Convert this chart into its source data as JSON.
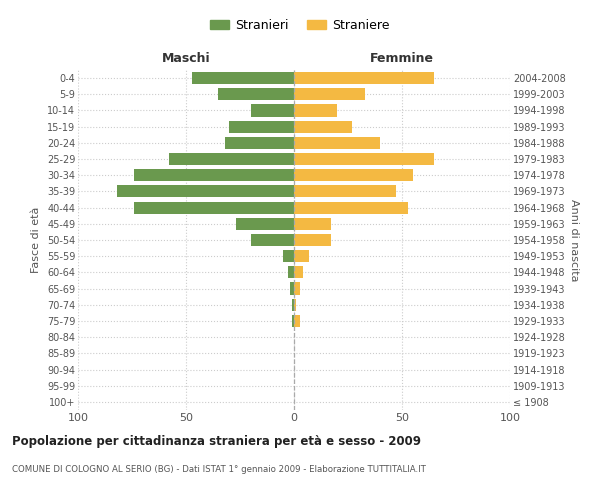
{
  "age_groups": [
    "100+",
    "95-99",
    "90-94",
    "85-89",
    "80-84",
    "75-79",
    "70-74",
    "65-69",
    "60-64",
    "55-59",
    "50-54",
    "45-49",
    "40-44",
    "35-39",
    "30-34",
    "25-29",
    "20-24",
    "15-19",
    "10-14",
    "5-9",
    "0-4"
  ],
  "birth_years": [
    "≤ 1908",
    "1909-1913",
    "1914-1918",
    "1919-1923",
    "1924-1928",
    "1929-1933",
    "1934-1938",
    "1939-1943",
    "1944-1948",
    "1949-1953",
    "1954-1958",
    "1959-1963",
    "1964-1968",
    "1969-1973",
    "1974-1978",
    "1979-1983",
    "1984-1988",
    "1989-1993",
    "1994-1998",
    "1999-2003",
    "2004-2008"
  ],
  "maschi": [
    0,
    0,
    0,
    0,
    0,
    1,
    1,
    2,
    3,
    5,
    20,
    27,
    74,
    82,
    74,
    58,
    32,
    30,
    20,
    35,
    47
  ],
  "femmine": [
    0,
    0,
    0,
    0,
    0,
    3,
    1,
    3,
    4,
    7,
    17,
    17,
    53,
    47,
    55,
    65,
    40,
    27,
    20,
    33,
    65
  ],
  "color_maschi": "#6a994e",
  "color_femmine": "#f4b942",
  "title": "Popolazione per cittadinanza straniera per età e sesso - 2009",
  "subtitle": "COMUNE DI COLOGNO AL SERIO (BG) - Dati ISTAT 1° gennaio 2009 - Elaborazione TUTTITALIA.IT",
  "xlabel_left": "Maschi",
  "xlabel_right": "Femmine",
  "ylabel_left": "Fasce di età",
  "ylabel_right": "Anni di nascita",
  "legend_maschi": "Stranieri",
  "legend_femmine": "Straniere",
  "xlim": 100,
  "background_color": "#ffffff",
  "grid_color": "#cccccc"
}
